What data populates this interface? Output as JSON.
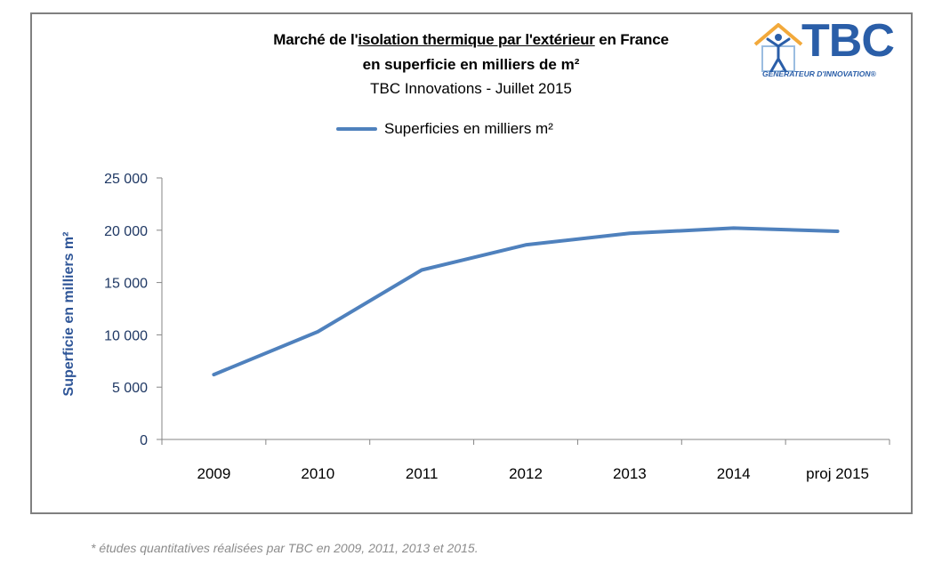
{
  "title": {
    "line1_pre": "Marché de l'",
    "line1_underlined": "isolation  thermique par l'extérieur",
    "line1_post": " en France",
    "line2": "en superficie  en milliers de m²",
    "line3": "TBC Innovations - Juillet 2015"
  },
  "logo": {
    "text": "TBC",
    "subtitle": "GÉNÉRATEUR D'INNOVATION®"
  },
  "footnote": "* études quantitatives réalisées par TBC en 2009, 2011, 2013 et 2015.",
  "colors": {
    "series": "#4F81BD",
    "axis_title": "#2E5597",
    "tick_labels": "#1F3864"
  },
  "chart_data": {
    "type": "line",
    "categories": [
      "2009",
      "2010",
      "2011",
      "2012",
      "2013",
      "2014",
      "proj 2015"
    ],
    "series": [
      {
        "name": "Superficies en milliers m²",
        "values": [
          6200,
          10300,
          16200,
          18600,
          19700,
          20200,
          19900
        ]
      }
    ],
    "ylabel": "Superficie en  milliers m²",
    "xlabel": "",
    "ylim": [
      0,
      25000
    ],
    "yticks": [
      "0",
      "5 000",
      "10 000",
      "15 000",
      "20 000",
      "25 000"
    ],
    "ytick_values": [
      0,
      5000,
      10000,
      15000,
      20000,
      25000
    ],
    "grid": false,
    "legend": "top-center"
  }
}
